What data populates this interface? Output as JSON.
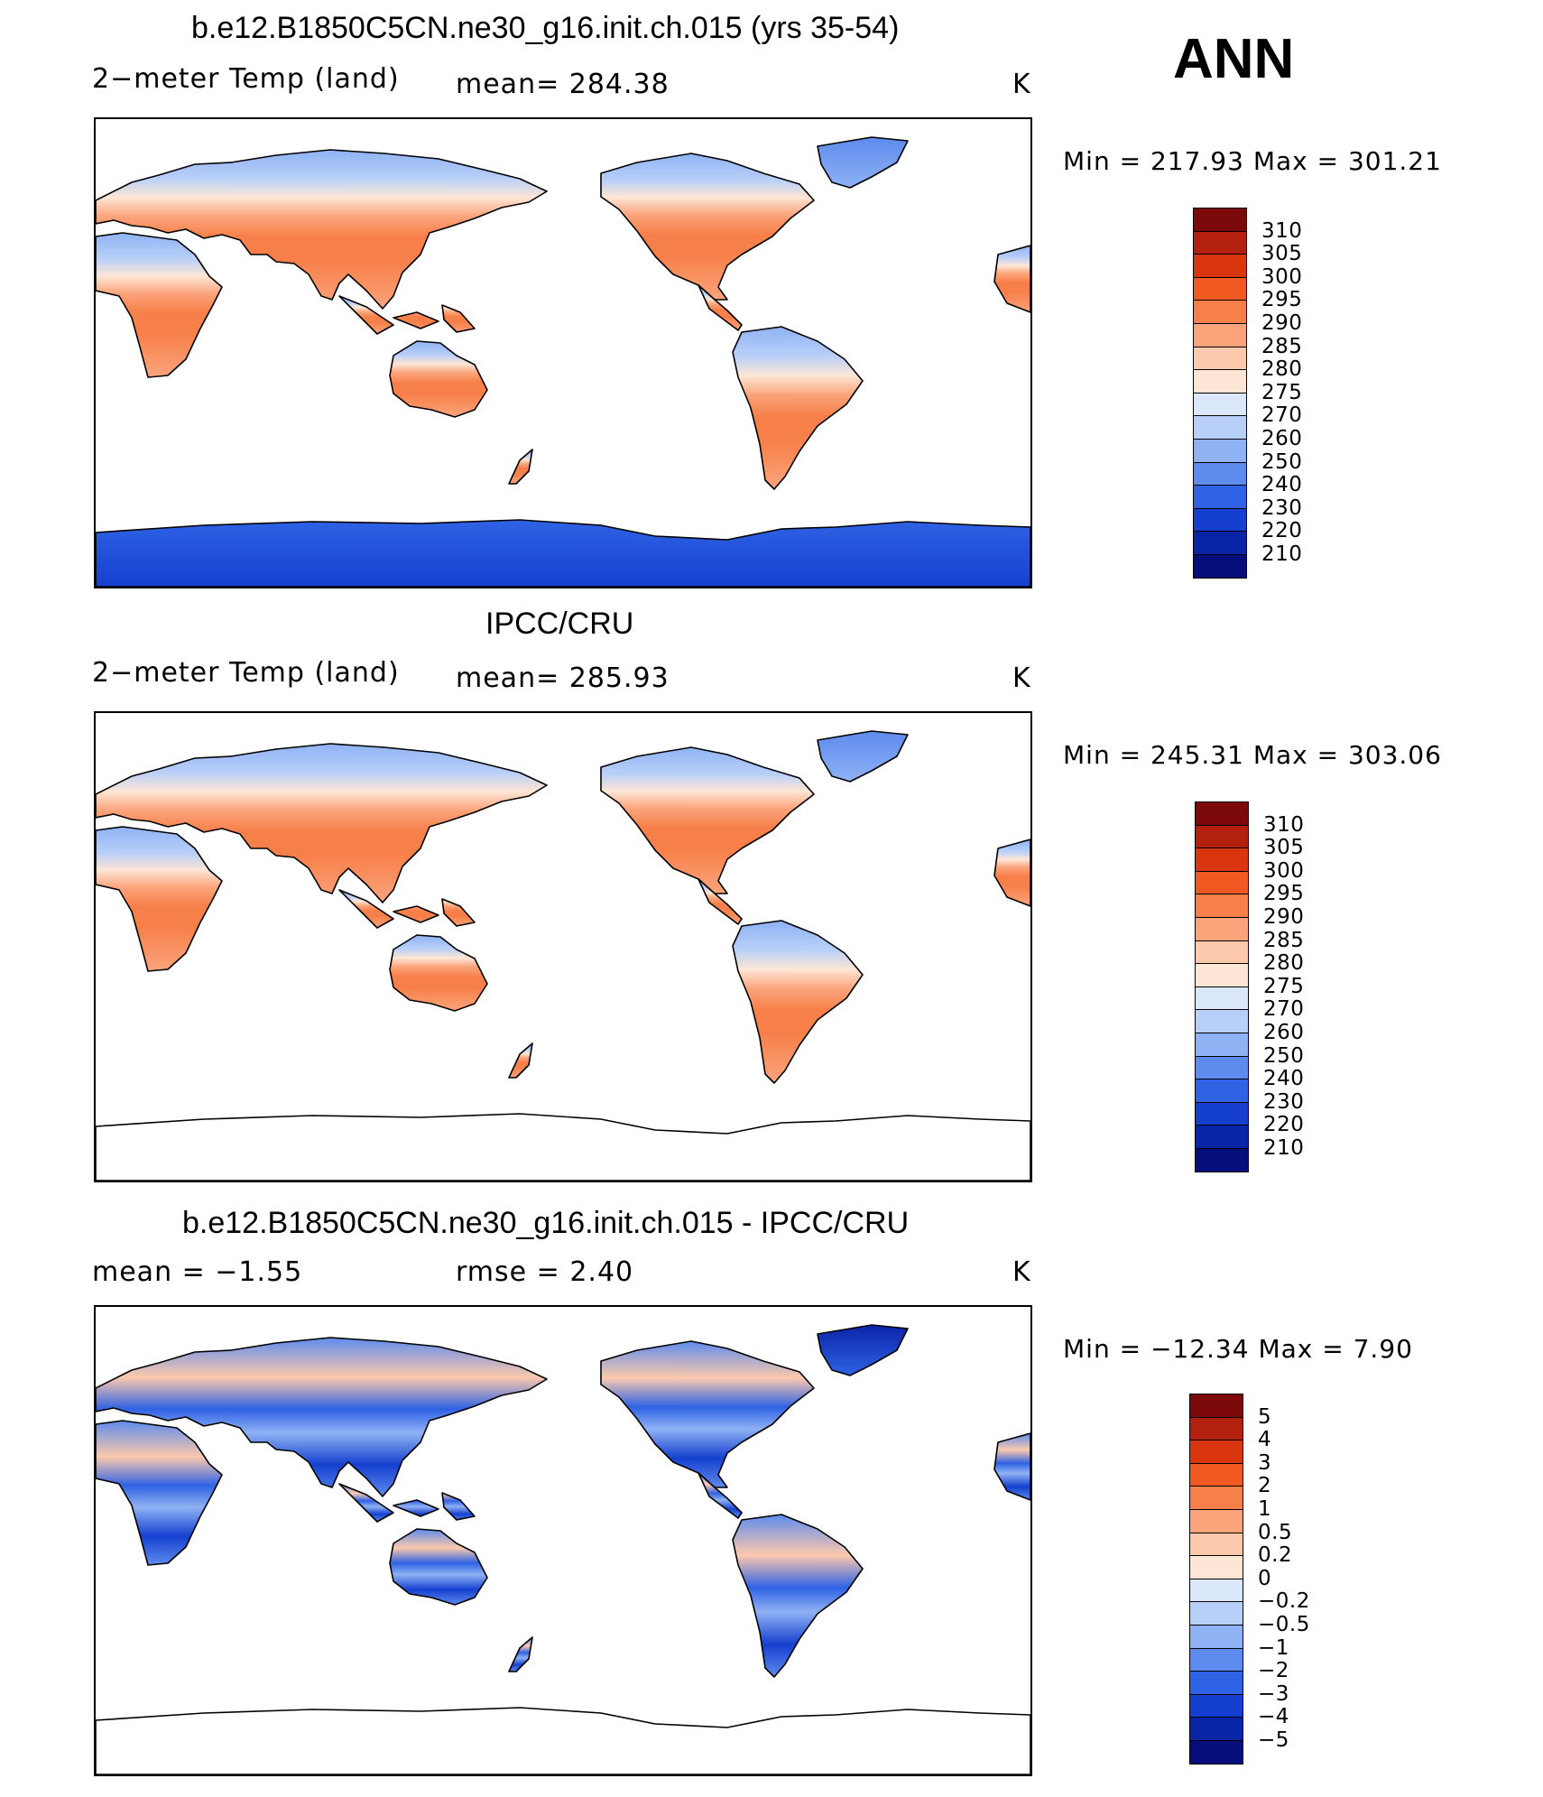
{
  "header": {
    "season": "ANN"
  },
  "panels": [
    {
      "id": "model",
      "title": "b.e12.B1850C5CN.ne30_g16.init.ch.015 (yrs 35-54)",
      "variable": "2−meter Temp (land)",
      "stat_text": "mean=  284.38",
      "units": "K",
      "minmax": "Min  =  217.93  Max  =  301.21",
      "antarctica_color": "#1e4fd6",
      "colorbar": {
        "labels": [
          "310",
          "305",
          "300",
          "295",
          "290",
          "285",
          "280",
          "275",
          "270",
          "260",
          "250",
          "240",
          "230",
          "220",
          "210"
        ],
        "colors": [
          "#7d0a0a",
          "#b3200d",
          "#d9360f",
          "#f05a22",
          "#f7804a",
          "#fba47c",
          "#fcc9ad",
          "#fde6d6",
          "#dbe8fb",
          "#b8cff8",
          "#8fb2f4",
          "#5d8bee",
          "#2f62e4",
          "#1540cf",
          "#0a24a8",
          "#050e7a"
        ]
      }
    },
    {
      "id": "obs",
      "title": "IPCC/CRU",
      "variable": "2−meter Temp (land)",
      "stat_text": "mean=  285.93",
      "units": "K",
      "minmax": "Min  =  245.31  Max  =  303.06",
      "antarctica_color": "#ffffff",
      "colorbar": {
        "labels": [
          "310",
          "305",
          "300",
          "295",
          "290",
          "285",
          "280",
          "275",
          "270",
          "260",
          "250",
          "240",
          "230",
          "220",
          "210"
        ],
        "colors": [
          "#7d0a0a",
          "#b3200d",
          "#d9360f",
          "#f05a22",
          "#f7804a",
          "#fba47c",
          "#fcc9ad",
          "#fde6d6",
          "#dbe8fb",
          "#b8cff8",
          "#8fb2f4",
          "#5d8bee",
          "#2f62e4",
          "#1540cf",
          "#0a24a8",
          "#050e7a"
        ]
      }
    },
    {
      "id": "diff",
      "title": "b.e12.B1850C5CN.ne30_g16.init.ch.015 - IPCC/CRU",
      "variable": "mean =    −1.55",
      "stat_text": "rmse =     2.40",
      "units": "K",
      "minmax": "Min  =  −12.34  Max  =      7.90",
      "antarctica_color": "#ffffff",
      "colorbar": {
        "labels": [
          "5",
          "4",
          "3",
          "2",
          "1",
          "0.5",
          "0.2",
          "0",
          "−0.2",
          "−0.5",
          "−1",
          "−2",
          "−3",
          "−4",
          "−5"
        ],
        "colors": [
          "#7d0a0a",
          "#b3200d",
          "#d9360f",
          "#f05a22",
          "#f7804a",
          "#fba47c",
          "#fcc9ad",
          "#fde6d6",
          "#dbe8fb",
          "#b8cff8",
          "#8fb2f4",
          "#5d8bee",
          "#2f62e4",
          "#1540cf",
          "#0a24a8",
          "#050e7a"
        ]
      }
    }
  ]
}
